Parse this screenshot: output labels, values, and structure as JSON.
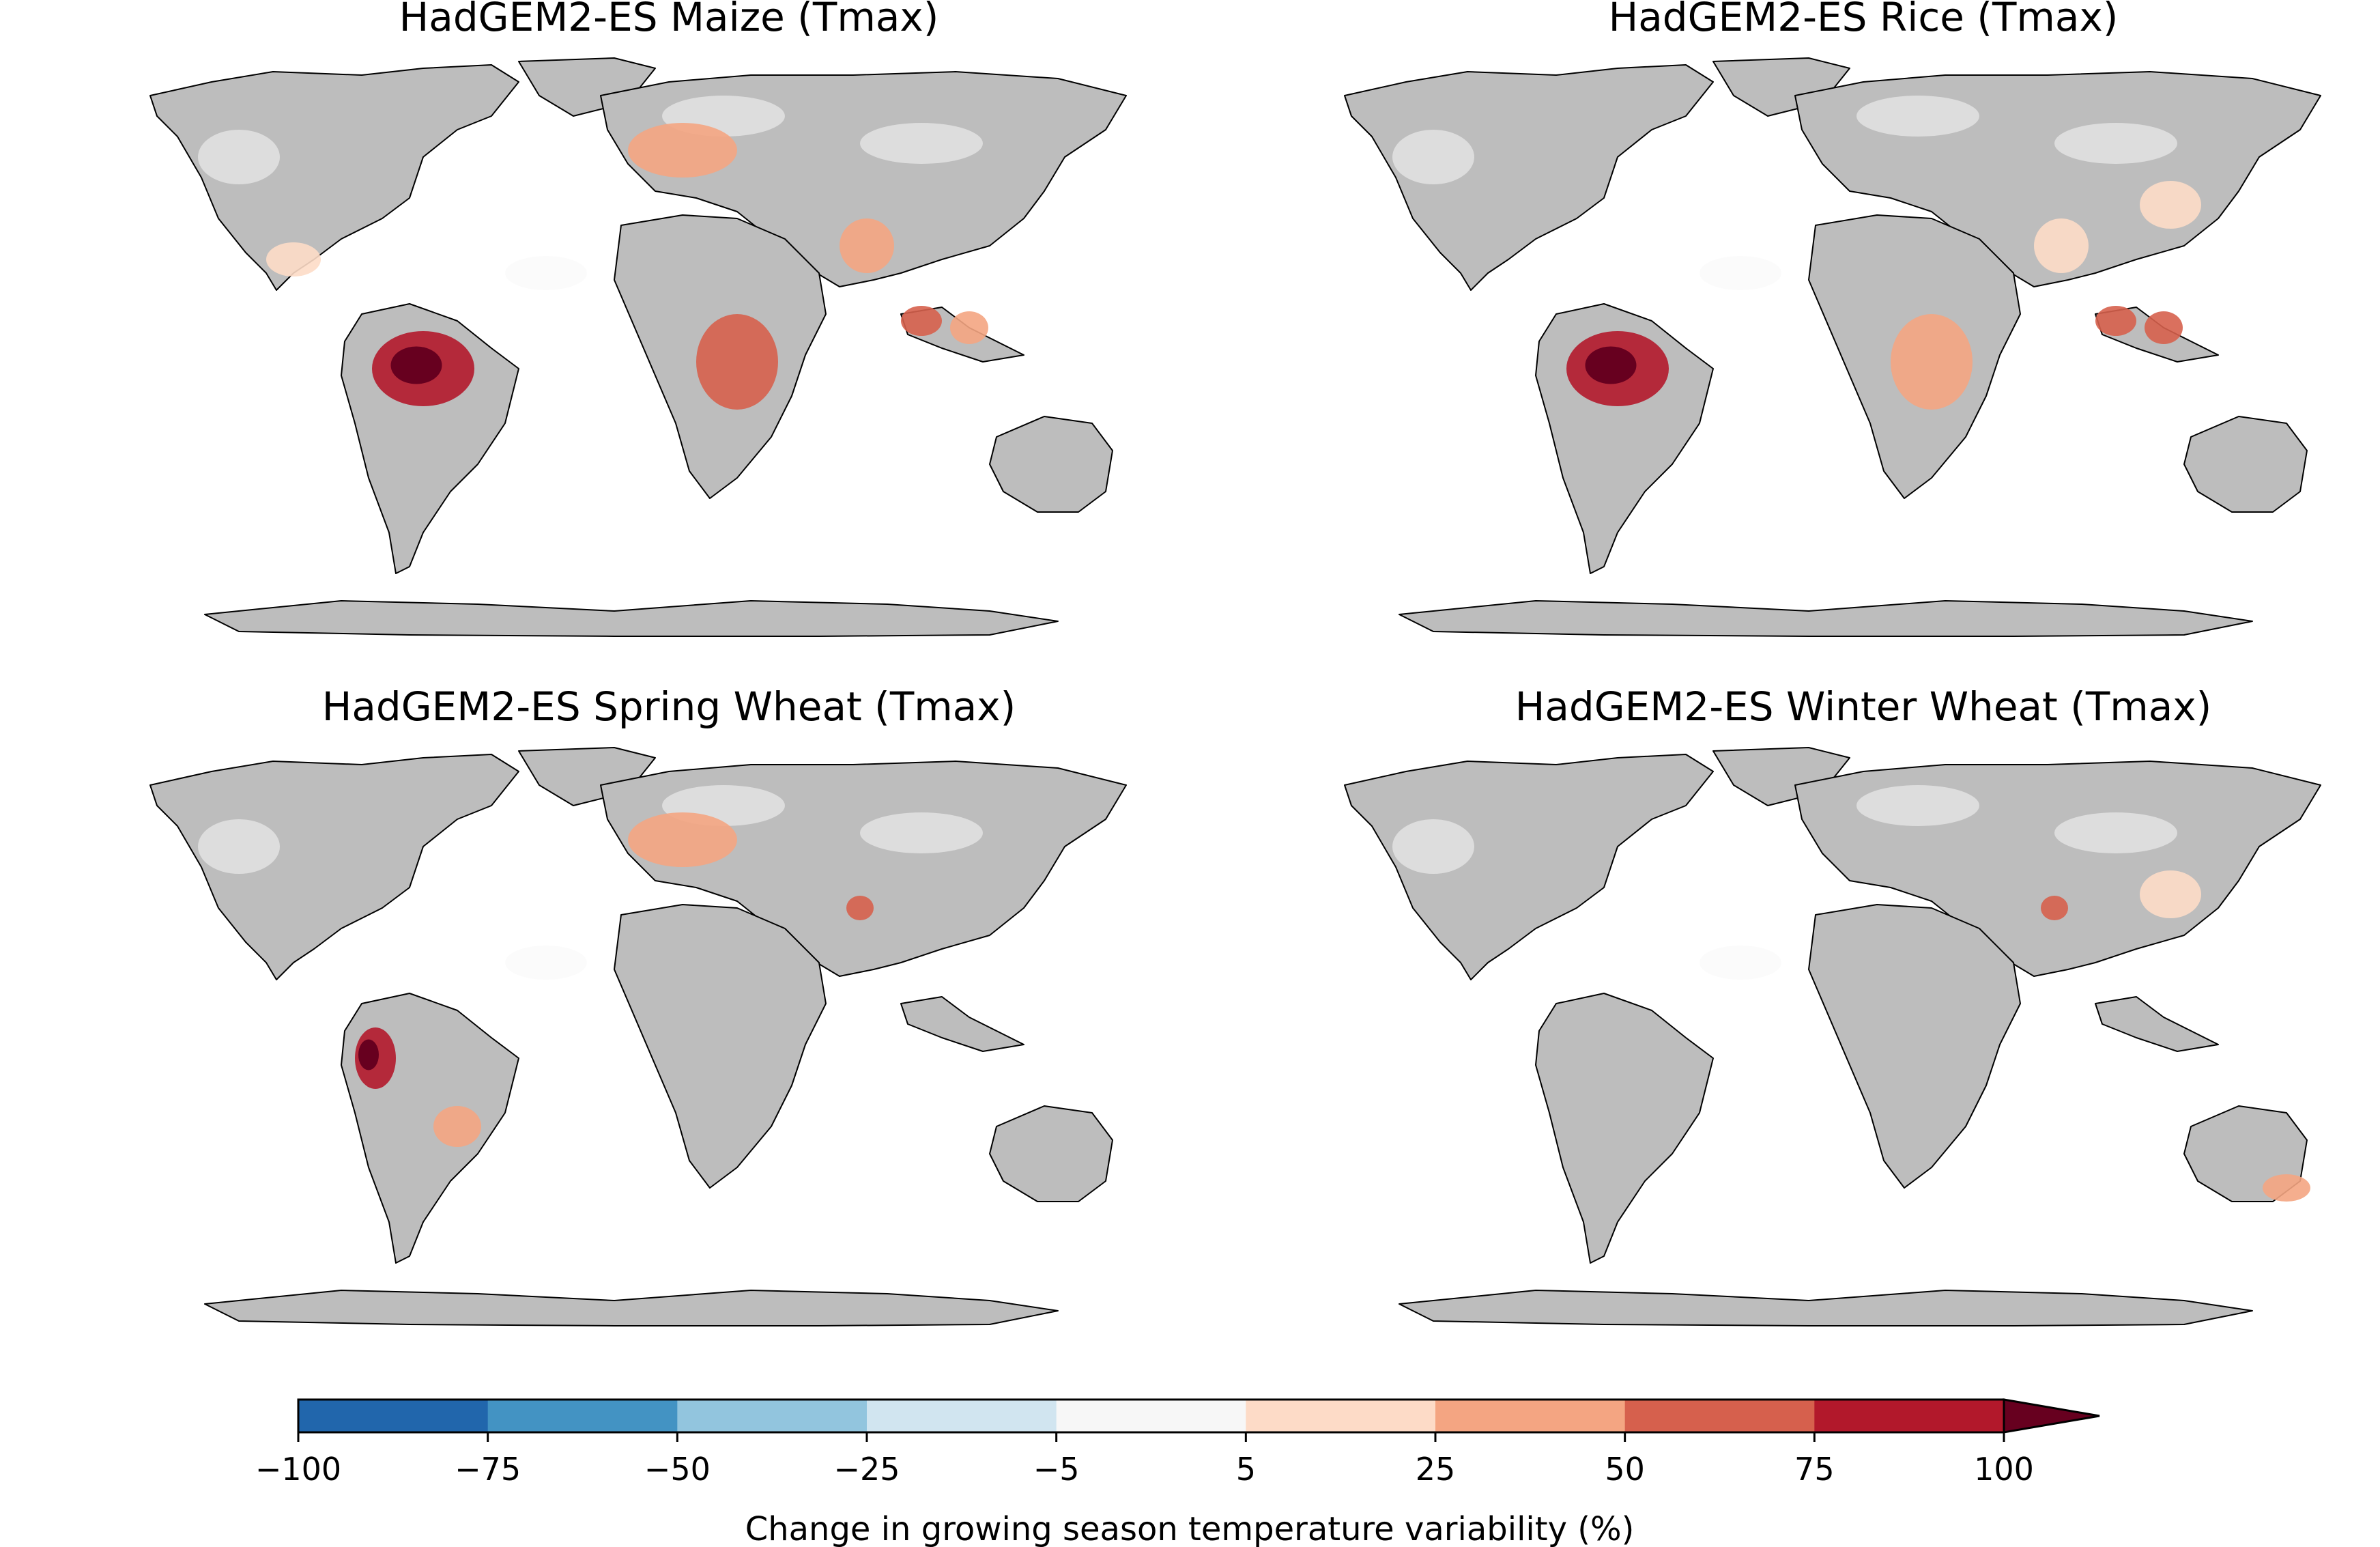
{
  "panels": [
    {
      "title": "HadGEM2-ES Maize (Tmax)",
      "hotspots": [
        {
          "region": "amazon",
          "level": "very-high"
        },
        {
          "region": "sumatra",
          "level": "high"
        },
        {
          "region": "borneo",
          "level": "mid"
        },
        {
          "region": "central-africa",
          "level": "high"
        },
        {
          "region": "europe",
          "level": "mid"
        },
        {
          "region": "india",
          "level": "mid"
        },
        {
          "region": "mexico",
          "level": "low"
        }
      ]
    },
    {
      "title": "HadGEM2-ES Rice (Tmax)",
      "hotspots": [
        {
          "region": "amazon",
          "level": "very-high"
        },
        {
          "region": "sumatra",
          "level": "high"
        },
        {
          "region": "borneo",
          "level": "high"
        },
        {
          "region": "central-africa",
          "level": "mid"
        },
        {
          "region": "india",
          "level": "low"
        },
        {
          "region": "china",
          "level": "low"
        }
      ]
    },
    {
      "title": "HadGEM2-ES Spring Wheat (Tmax)",
      "hotspots": [
        {
          "region": "andes",
          "level": "very-high"
        },
        {
          "region": "europe",
          "level": "mid"
        },
        {
          "region": "india-north",
          "level": "high"
        },
        {
          "region": "se-brazil",
          "level": "mid"
        }
      ]
    },
    {
      "title": "HadGEM2-ES Winter Wheat (Tmax)",
      "hotspots": [
        {
          "region": "india-north",
          "level": "high"
        },
        {
          "region": "china",
          "level": "low"
        },
        {
          "region": "se-australia",
          "level": "mid"
        }
      ]
    }
  ],
  "legend": {
    "label": "Change in growing season temperature variability (%)",
    "ticks": [
      "−100",
      "−75",
      "−50",
      "−25",
      "−5",
      "5",
      "25",
      "50",
      "75",
      "100"
    ],
    "bins": [
      {
        "from": -100,
        "to": -75,
        "color": "#2166ac"
      },
      {
        "from": -75,
        "to": -50,
        "color": "#4393c3"
      },
      {
        "from": -50,
        "to": -25,
        "color": "#92c5de"
      },
      {
        "from": -25,
        "to": -5,
        "color": "#d1e5f0"
      },
      {
        "from": -5,
        "to": 5,
        "color": "#f7f7f7"
      },
      {
        "from": 5,
        "to": 25,
        "color": "#fddbc7"
      },
      {
        "from": 25,
        "to": 50,
        "color": "#f4a582"
      },
      {
        "from": 50,
        "to": 75,
        "color": "#d6604d"
      },
      {
        "from": 75,
        "to": 100,
        "color": "#b2182b"
      }
    ],
    "extend_color": "#67001f",
    "extend": "max"
  },
  "colors": {
    "land_nodata": "#bdbdbd",
    "coast": "#000000"
  }
}
